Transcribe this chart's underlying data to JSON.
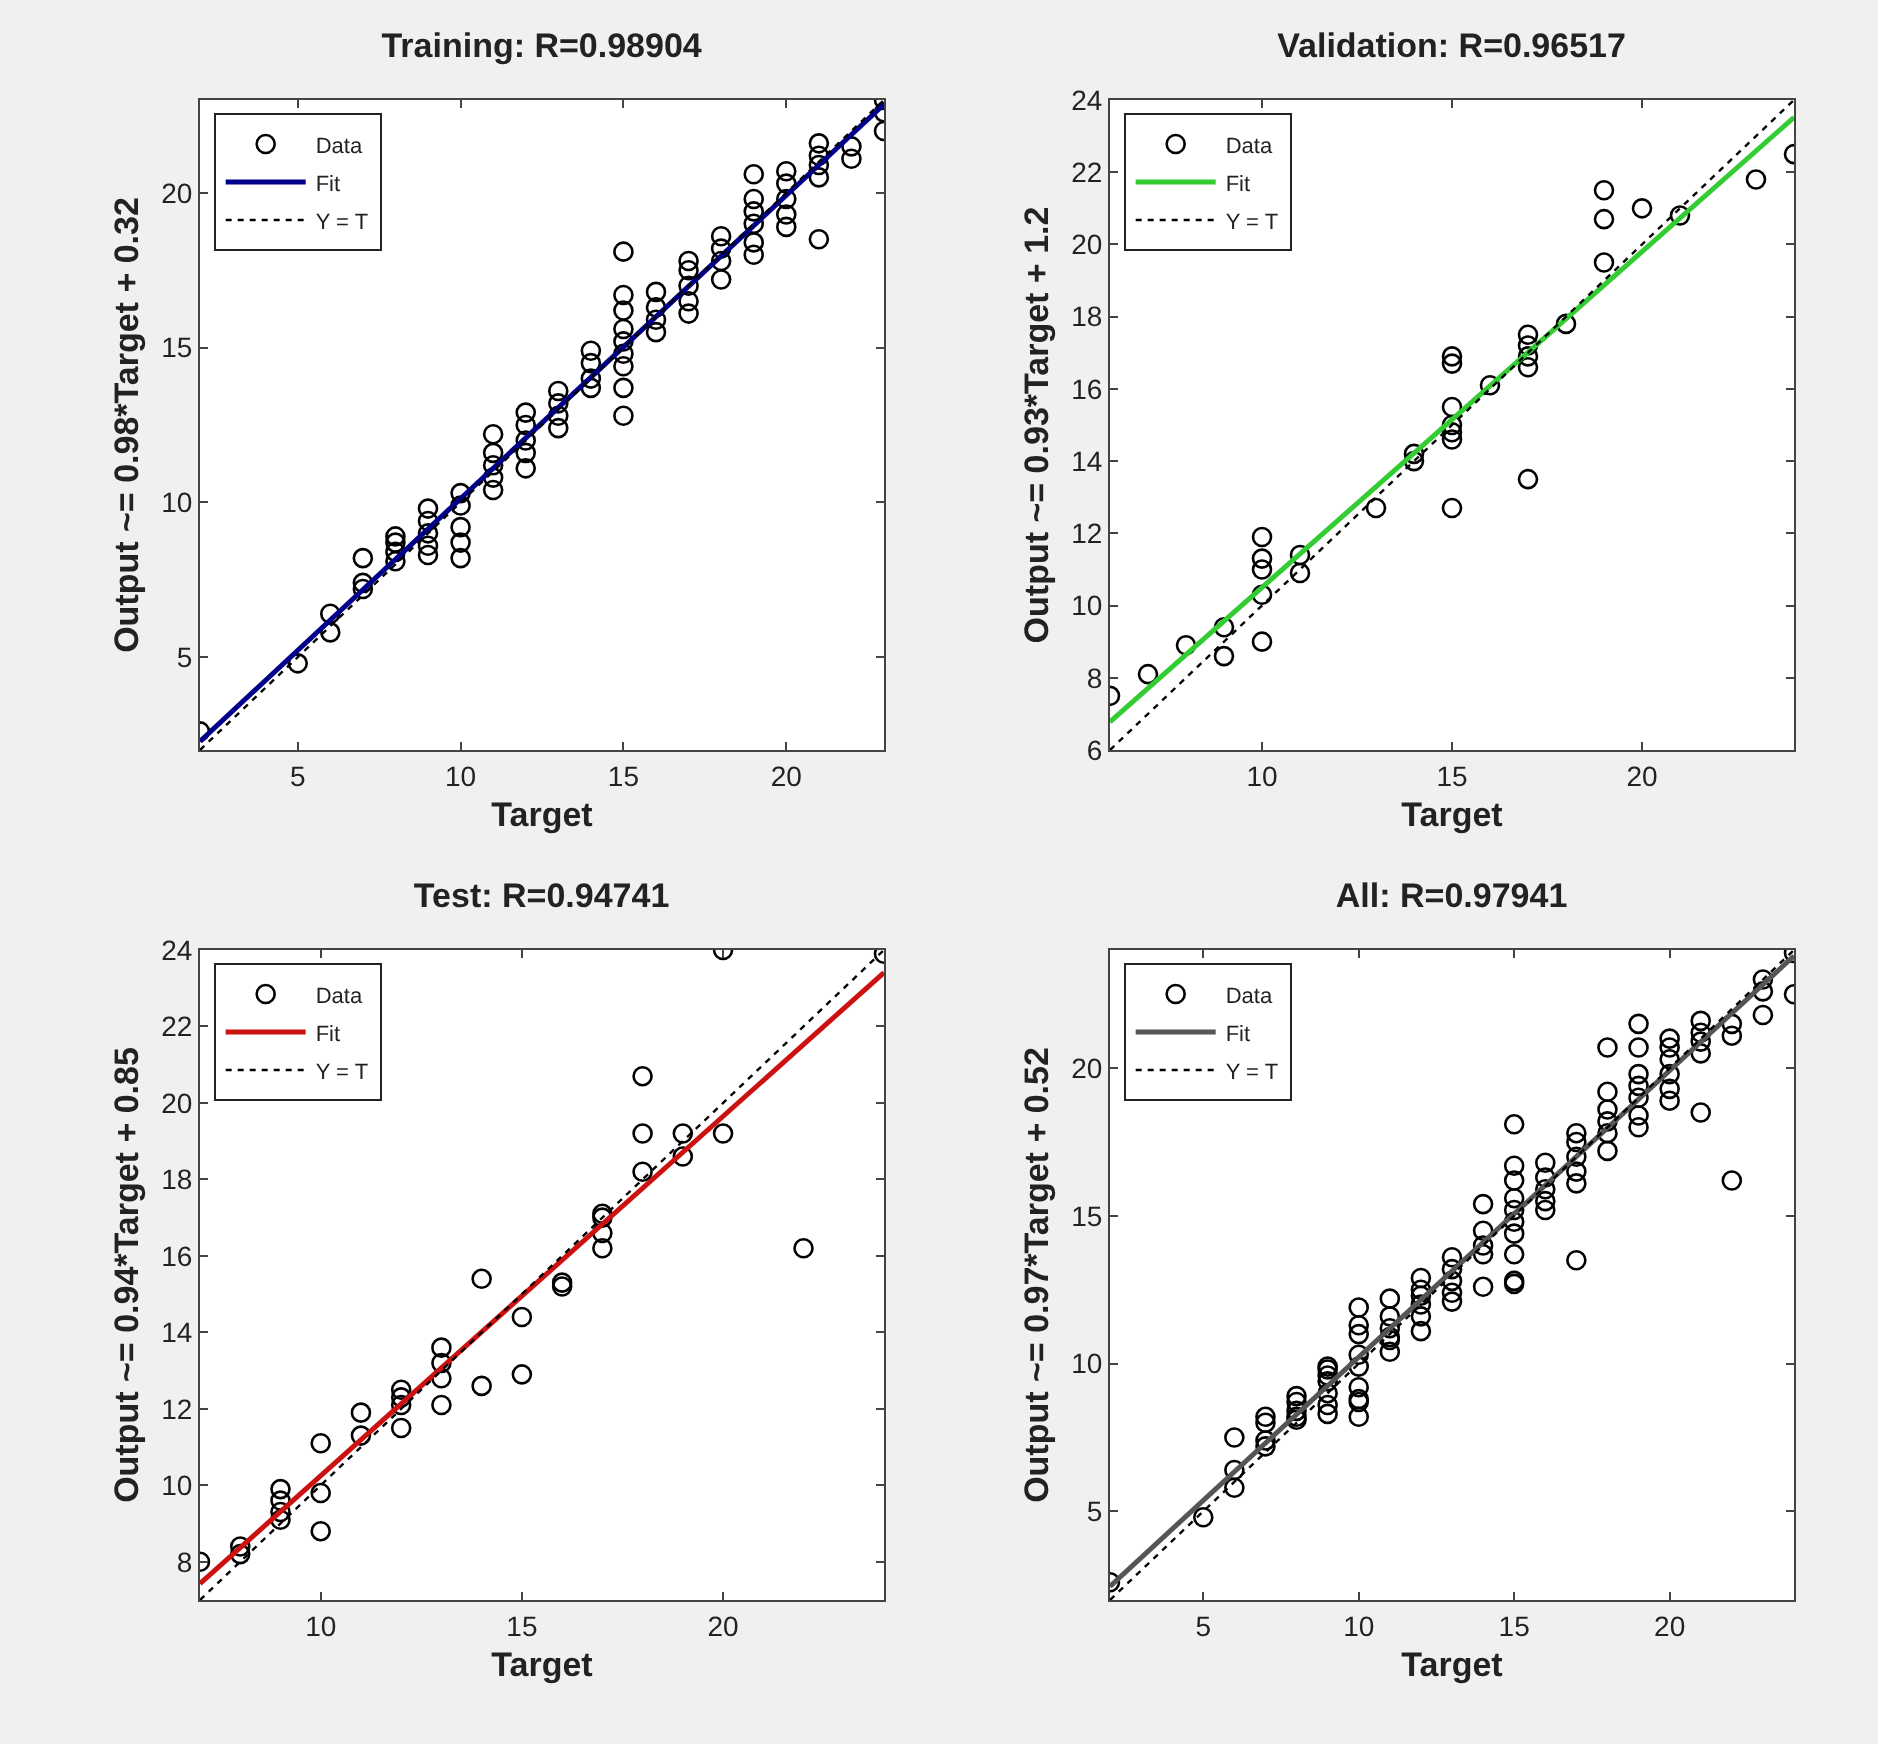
{
  "chart_data": [
    {
      "type": "scatter",
      "title": "Training: R=0.98904",
      "xlabel": "Target",
      "ylabel": "Output ~= 0.98*Target + 0.32",
      "xlim": [
        2,
        23
      ],
      "ylim": [
        2,
        23
      ],
      "xticks": [
        5,
        10,
        15,
        20
      ],
      "yticks": [
        5,
        10,
        15,
        20
      ],
      "grid": false,
      "legend": "top left",
      "series": [
        {
          "name": "Data",
          "type": "scatter",
          "marker": "circle",
          "color": "#000000",
          "x": [
            2,
            5,
            6,
            6,
            7,
            7,
            7,
            8,
            8,
            8,
            8,
            9,
            9,
            9,
            9,
            9,
            10,
            10,
            10,
            10,
            10,
            11,
            11,
            11,
            11,
            11,
            12,
            12,
            12,
            12,
            12,
            13,
            13,
            13,
            13,
            14,
            14,
            14,
            14,
            15,
            15,
            15,
            15,
            15,
            15,
            15,
            15,
            15,
            16,
            16,
            16,
            16,
            17,
            17,
            17,
            17,
            17,
            18,
            18,
            18,
            18,
            19,
            19,
            19,
            19,
            19,
            19,
            20,
            20,
            20,
            20,
            20,
            21,
            21,
            21,
            21,
            21,
            22,
            22,
            23,
            23,
            23
          ],
          "values": [
            2.6,
            4.8,
            5.8,
            6.4,
            7.2,
            7.4,
            8.2,
            8.1,
            8.4,
            8.7,
            8.9,
            8.3,
            8.6,
            9.0,
            9.4,
            9.8,
            8.2,
            8.7,
            9.2,
            9.9,
            10.3,
            10.4,
            10.8,
            11.2,
            11.6,
            12.2,
            11.1,
            11.6,
            12.0,
            12.5,
            12.9,
            12.4,
            12.8,
            13.2,
            13.6,
            13.7,
            14.0,
            14.5,
            14.9,
            12.8,
            13.7,
            14.4,
            14.8,
            15.2,
            15.6,
            16.2,
            16.7,
            18.1,
            15.5,
            15.9,
            16.3,
            16.8,
            16.1,
            16.5,
            17.0,
            17.5,
            17.8,
            17.2,
            17.8,
            18.2,
            18.6,
            18.0,
            18.4,
            19.0,
            19.4,
            19.8,
            20.6,
            18.9,
            19.3,
            19.8,
            20.3,
            20.7,
            18.5,
            20.5,
            20.9,
            21.2,
            21.6,
            21.1,
            21.5,
            22.0,
            22.6,
            23.0
          ]
        },
        {
          "name": "Fit",
          "type": "line",
          "marker": "none",
          "line_style": "solid",
          "color": "#00008b",
          "x": [
            2,
            23
          ],
          "values": [
            2.28,
            22.86
          ]
        },
        {
          "name": "Y = T",
          "type": "line",
          "marker": "none",
          "line_style": "dotted",
          "color": "#000000",
          "x": [
            2,
            23
          ],
          "values": [
            2,
            23
          ]
        }
      ]
    },
    {
      "type": "scatter",
      "title": "Validation: R=0.96517",
      "xlabel": "Target",
      "ylabel": "Output ~= 0.93*Target + 1.2",
      "xlim": [
        6,
        24
      ],
      "ylim": [
        6,
        24
      ],
      "xticks": [
        10,
        15,
        20
      ],
      "yticks": [
        6,
        8,
        10,
        12,
        14,
        16,
        18,
        20,
        22,
        24
      ],
      "grid": false,
      "legend": "top left",
      "series": [
        {
          "name": "Data",
          "type": "scatter",
          "marker": "circle",
          "color": "#000000",
          "x": [
            6,
            7,
            8,
            9,
            9,
            10,
            10,
            10,
            10,
            10,
            11,
            11,
            13,
            14,
            14,
            15,
            15,
            15,
            15,
            15,
            15,
            15,
            16,
            17,
            17,
            17,
            17,
            17,
            18,
            19,
            19,
            19,
            20,
            21,
            23,
            24
          ],
          "values": [
            7.5,
            8.1,
            8.9,
            8.6,
            9.4,
            9.0,
            10.3,
            11.0,
            11.3,
            11.9,
            10.9,
            11.4,
            12.7,
            14.0,
            14.2,
            12.7,
            14.6,
            14.8,
            15.0,
            15.5,
            16.7,
            16.9,
            16.1,
            13.5,
            16.6,
            16.9,
            17.2,
            17.5,
            17.8,
            19.5,
            20.7,
            21.5,
            21.0,
            20.8,
            21.8,
            22.5
          ]
        },
        {
          "name": "Fit",
          "type": "line",
          "marker": "none",
          "line_style": "solid",
          "color": "#33cc33",
          "x": [
            6,
            24
          ],
          "values": [
            6.78,
            23.52
          ]
        },
        {
          "name": "Y = T",
          "type": "line",
          "marker": "none",
          "line_style": "dotted",
          "color": "#000000",
          "x": [
            6,
            24
          ],
          "values": [
            6,
            24
          ]
        }
      ]
    },
    {
      "type": "scatter",
      "title": "Test: R=0.94741",
      "xlabel": "Target",
      "ylabel": "Output ~= 0.94*Target + 0.85",
      "xlim": [
        7,
        24
      ],
      "ylim": [
        7,
        24
      ],
      "xticks": [
        10,
        15,
        20
      ],
      "yticks": [
        8,
        10,
        12,
        14,
        16,
        18,
        20,
        22,
        24
      ],
      "grid": false,
      "legend": "top left",
      "series": [
        {
          "name": "Data",
          "type": "scatter",
          "marker": "circle",
          "color": "#000000",
          "x": [
            7,
            8,
            8,
            9,
            9,
            9,
            9,
            10,
            10,
            10,
            11,
            11,
            12,
            12,
            12,
            12,
            13,
            13,
            13,
            13,
            14,
            14,
            15,
            15,
            16,
            16,
            17,
            17,
            17,
            17,
            18,
            18,
            18,
            19,
            19,
            20,
            20,
            22,
            24
          ],
          "values": [
            8.0,
            8.2,
            8.4,
            9.1,
            9.3,
            9.6,
            9.9,
            8.8,
            9.8,
            11.1,
            11.3,
            11.9,
            11.5,
            12.1,
            12.3,
            12.5,
            12.1,
            12.8,
            13.2,
            13.6,
            12.6,
            15.4,
            12.9,
            14.4,
            15.2,
            15.3,
            16.2,
            16.6,
            17.0,
            17.1,
            18.2,
            19.2,
            20.7,
            18.6,
            19.2,
            19.2,
            24.0,
            16.2,
            23.9
          ]
        },
        {
          "name": "Fit",
          "type": "line",
          "marker": "none",
          "line_style": "solid",
          "color": "#cc1111",
          "x": [
            7,
            24
          ],
          "values": [
            7.43,
            23.41
          ]
        },
        {
          "name": "Y = T",
          "type": "line",
          "marker": "none",
          "line_style": "dotted",
          "color": "#000000",
          "x": [
            7,
            24
          ],
          "values": [
            7,
            24
          ]
        }
      ]
    },
    {
      "type": "scatter",
      "title": "All: R=0.97941",
      "xlabel": "Target",
      "ylabel": "Output ~= 0.97*Target + 0.52",
      "xlim": [
        2,
        24
      ],
      "ylim": [
        2,
        24
      ],
      "xticks": [
        5,
        10,
        15,
        20
      ],
      "yticks": [
        5,
        10,
        15,
        20
      ],
      "grid": false,
      "legend": "top left",
      "series": [
        {
          "name": "Data",
          "type": "scatter",
          "marker": "circle",
          "color": "#000000",
          "x": [
            2,
            5,
            6,
            6,
            6,
            7,
            7,
            7,
            7,
            8,
            8,
            8,
            8,
            8,
            9,
            9,
            9,
            9,
            9,
            9,
            9,
            10,
            10,
            10,
            10,
            10,
            10,
            10,
            10,
            10,
            11,
            11,
            11,
            11,
            11,
            11,
            12,
            12,
            12,
            12,
            12,
            12,
            13,
            13,
            13,
            13,
            13,
            14,
            14,
            14,
            14,
            14,
            15,
            15,
            15,
            15,
            15,
            15,
            15,
            15,
            15,
            15,
            16,
            16,
            16,
            16,
            16,
            17,
            17,
            17,
            17,
            17,
            17,
            18,
            18,
            18,
            18,
            18,
            18,
            19,
            19,
            19,
            19,
            19,
            19,
            19,
            20,
            20,
            20,
            20,
            20,
            20,
            21,
            21,
            21,
            21,
            21,
            22,
            22,
            22,
            23,
            23,
            23,
            24,
            24
          ],
          "values": [
            2.6,
            4.8,
            5.8,
            6.4,
            7.5,
            7.2,
            7.4,
            8.0,
            8.2,
            8.1,
            8.4,
            8.7,
            8.9,
            8.2,
            8.3,
            8.6,
            9.0,
            9.4,
            9.8,
            9.6,
            9.9,
            8.2,
            8.7,
            9.2,
            9.9,
            10.3,
            11.0,
            11.3,
            11.9,
            8.8,
            10.4,
            10.8,
            11.2,
            11.6,
            12.2,
            10.9,
            11.1,
            11.6,
            12.0,
            12.5,
            12.9,
            12.3,
            12.4,
            12.8,
            13.2,
            13.6,
            12.1,
            13.7,
            14.0,
            14.5,
            15.4,
            12.6,
            12.8,
            13.7,
            14.4,
            14.8,
            15.2,
            15.6,
            16.2,
            16.7,
            18.1,
            12.7,
            15.2,
            15.5,
            15.9,
            16.3,
            16.8,
            13.5,
            16.1,
            16.5,
            17.0,
            17.5,
            17.8,
            17.2,
            17.8,
            18.2,
            18.6,
            19.2,
            20.7,
            18.0,
            18.4,
            19.0,
            19.4,
            19.8,
            20.7,
            21.5,
            18.9,
            19.3,
            19.8,
            20.3,
            20.7,
            21.0,
            18.5,
            20.5,
            20.9,
            21.2,
            21.6,
            16.2,
            21.1,
            21.5,
            21.8,
            22.6,
            23.0,
            22.5,
            23.9
          ]
        },
        {
          "name": "Fit",
          "type": "line",
          "marker": "none",
          "line_style": "solid",
          "color": "#555555",
          "x": [
            2,
            24
          ],
          "values": [
            2.46,
            23.8
          ]
        },
        {
          "name": "Y = T",
          "type": "line",
          "marker": "none",
          "line_style": "dotted",
          "color": "#000000",
          "x": [
            2,
            24
          ],
          "values": [
            2,
            24
          ]
        }
      ]
    }
  ]
}
